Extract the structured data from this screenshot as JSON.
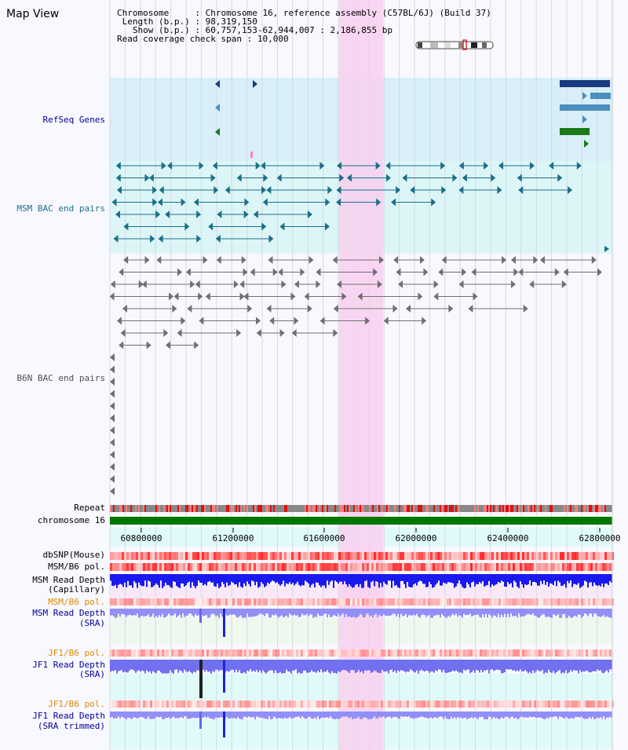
{
  "title": "Map View",
  "info": {
    "chromosome_key": "Chromosome",
    "chromosome_val": "Chromosome 16, reference assembly (C57BL/6J) (Build 37)",
    "length_key": "Length (b.p.)",
    "length_val": "98,319,150",
    "show_key": "Show (b.p.)",
    "show_val": "60,757,153-62,944,007 : 2,186,855 bp",
    "span_key": "Read coverage check span",
    "span_val": "10,000"
  },
  "tracks": {
    "refseq": "RefSeq Genes",
    "msm_bac": "MSM BAC end pairs",
    "b6n_bac": "B6N BAC end pairs",
    "repeat": "Repeat",
    "chromosome": "chromosome 16",
    "dbsnp": "dbSNP(Mouse)",
    "msm_pol1": "MSM/B6 pol.",
    "msm_depth_cap_1": "MSM Read Depth",
    "msm_depth_cap_2": "(Capillary)",
    "msm_pol2": "MSM/B6 pol.",
    "msm_depth_sra_1": "MSM Read Depth",
    "msm_depth_sra_2": "(SRA)",
    "jf1_pol1": "JF1/B6 pol.",
    "jf1_depth_sra_1": "JF1 Read Depth",
    "jf1_depth_sra_2": "(SRA)",
    "jf1_pol2": "JF1/B6 pol.",
    "jf1_depth_trim_1": "JF1 Read Depth",
    "jf1_depth_trim_2": "(SRA trimmed)"
  },
  "axis": {
    "ticks": [
      "60800000",
      "61200000",
      "61600000",
      "62000000",
      "62400000",
      "62800000"
    ]
  },
  "colors": {
    "refseq_dark": "#1a3a80",
    "refseq_mid": "#4a8fbf",
    "refseq_green": "#1a7a1a",
    "msm_bac": "#1b6f8a",
    "b6n_bac": "#707070",
    "highlight": "#f8d0f0",
    "label_blue": "#000099",
    "label_orange": "#e08a00"
  }
}
